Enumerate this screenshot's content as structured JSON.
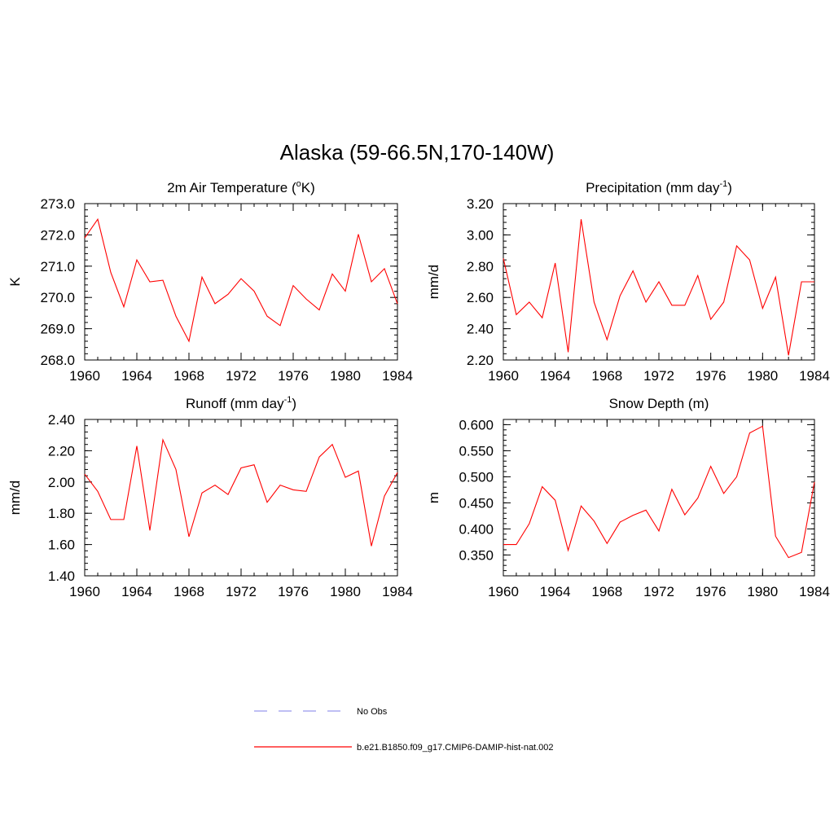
{
  "figure": {
    "title": "Alaska (59-66.5N,170-140W)"
  },
  "legend": {
    "entries": [
      {
        "label": "No Obs",
        "color": "#9999ee",
        "style": "dashed"
      },
      {
        "label": "b.e21.B1850.f09_g17.CMIP6-DAMIP-hist-nat.002",
        "color": "#ff0000",
        "style": "solid"
      }
    ]
  },
  "chart_data": [
    {
      "type": "line",
      "title": "2m Air Temperature (",
      "title_sup": "o",
      "title_after": "K)",
      "ylabel": "K",
      "xlim": [
        1960,
        1984
      ],
      "ylim": [
        268.0,
        273.0
      ],
      "xticks": [
        1960,
        1964,
        1968,
        1972,
        1976,
        1980,
        1984
      ],
      "yticks": [
        268.0,
        269.0,
        270.0,
        271.0,
        272.0,
        273.0
      ],
      "ytick_labels": [
        "268.0",
        "269.0",
        "270.0",
        "271.0",
        "272.0",
        "273.0"
      ],
      "yminor": 0.2,
      "series": [
        {
          "color": "#ff0000",
          "x": [
            1960,
            1961,
            1962,
            1963,
            1964,
            1965,
            1966,
            1967,
            1968,
            1969,
            1970,
            1971,
            1972,
            1973,
            1974,
            1975,
            1976,
            1977,
            1978,
            1979,
            1980,
            1981,
            1982,
            1983,
            1984
          ],
          "y": [
            271.9,
            272.5,
            270.8,
            269.7,
            271.2,
            270.5,
            270.55,
            269.4,
            268.6,
            270.65,
            269.8,
            270.1,
            270.6,
            270.2,
            269.4,
            269.1,
            270.38,
            269.95,
            269.6,
            270.75,
            270.2,
            272.02,
            270.5,
            270.92,
            269.8
          ]
        }
      ]
    },
    {
      "type": "line",
      "title": "Precipitation (mm day",
      "title_sup": "-1",
      "title_after": ")",
      "ylabel": "mm/d",
      "xlim": [
        1960,
        1984
      ],
      "ylim": [
        2.2,
        3.2
      ],
      "xticks": [
        1960,
        1964,
        1968,
        1972,
        1976,
        1980,
        1984
      ],
      "yticks": [
        2.2,
        2.4,
        2.6,
        2.8,
        3.0,
        3.2
      ],
      "ytick_labels": [
        "2.20",
        "2.40",
        "2.60",
        "2.80",
        "3.00",
        "3.20"
      ],
      "yminor": 0.04,
      "series": [
        {
          "color": "#ff0000",
          "x": [
            1960,
            1961,
            1962,
            1963,
            1964,
            1965,
            1966,
            1967,
            1968,
            1969,
            1970,
            1971,
            1972,
            1973,
            1974,
            1975,
            1976,
            1977,
            1978,
            1979,
            1980,
            1981,
            1982,
            1983,
            1984
          ],
          "y": [
            2.85,
            2.49,
            2.57,
            2.47,
            2.82,
            2.25,
            3.1,
            2.57,
            2.33,
            2.61,
            2.77,
            2.57,
            2.7,
            2.55,
            2.55,
            2.74,
            2.46,
            2.57,
            2.93,
            2.84,
            2.53,
            2.73,
            2.23,
            2.7,
            2.7
          ]
        }
      ]
    },
    {
      "type": "line",
      "title": "Runoff (mm day",
      "title_sup": "-1",
      "title_after": ")",
      "ylabel": "mm/d",
      "xlim": [
        1960,
        1984
      ],
      "ylim": [
        1.4,
        2.4
      ],
      "xticks": [
        1960,
        1964,
        1968,
        1972,
        1976,
        1980,
        1984
      ],
      "yticks": [
        1.4,
        1.6,
        1.8,
        2.0,
        2.2,
        2.4
      ],
      "ytick_labels": [
        "1.40",
        "1.60",
        "1.80",
        "2.00",
        "2.20",
        "2.40"
      ],
      "yminor": 0.04,
      "series": [
        {
          "color": "#ff0000",
          "x": [
            1960,
            1961,
            1962,
            1963,
            1964,
            1965,
            1966,
            1967,
            1968,
            1969,
            1970,
            1971,
            1972,
            1973,
            1974,
            1975,
            1976,
            1977,
            1978,
            1979,
            1980,
            1981,
            1982,
            1983,
            1984
          ],
          "y": [
            2.05,
            1.94,
            1.76,
            1.76,
            2.23,
            1.69,
            2.27,
            2.08,
            1.65,
            1.93,
            1.98,
            1.92,
            2.09,
            2.11,
            1.87,
            1.98,
            1.95,
            1.94,
            2.16,
            2.24,
            2.03,
            2.07,
            1.59,
            1.91,
            2.06
          ]
        }
      ]
    },
    {
      "type": "line",
      "title": "Snow Depth (m)",
      "title_sup": "",
      "title_after": "",
      "ylabel": "m",
      "xlim": [
        1960,
        1984
      ],
      "ylim": [
        0.31,
        0.61
      ],
      "xticks": [
        1960,
        1964,
        1968,
        1972,
        1976,
        1980,
        1984
      ],
      "yticks": [
        0.35,
        0.4,
        0.45,
        0.5,
        0.55,
        0.6
      ],
      "ytick_labels": [
        "0.350",
        "0.400",
        "0.450",
        "0.500",
        "0.550",
        "0.600"
      ],
      "yminor": 0.01,
      "series": [
        {
          "color": "#ff0000",
          "x": [
            1960,
            1961,
            1962,
            1963,
            1964,
            1965,
            1966,
            1967,
            1968,
            1969,
            1970,
            1971,
            1972,
            1973,
            1974,
            1975,
            1976,
            1977,
            1978,
            1979,
            1980,
            1981,
            1982,
            1983,
            1984
          ],
          "y": [
            0.37,
            0.37,
            0.41,
            0.481,
            0.455,
            0.359,
            0.444,
            0.415,
            0.372,
            0.413,
            0.426,
            0.436,
            0.396,
            0.476,
            0.427,
            0.459,
            0.52,
            0.468,
            0.5,
            0.584,
            0.597,
            0.386,
            0.345,
            0.355,
            0.49
          ]
        }
      ]
    }
  ]
}
